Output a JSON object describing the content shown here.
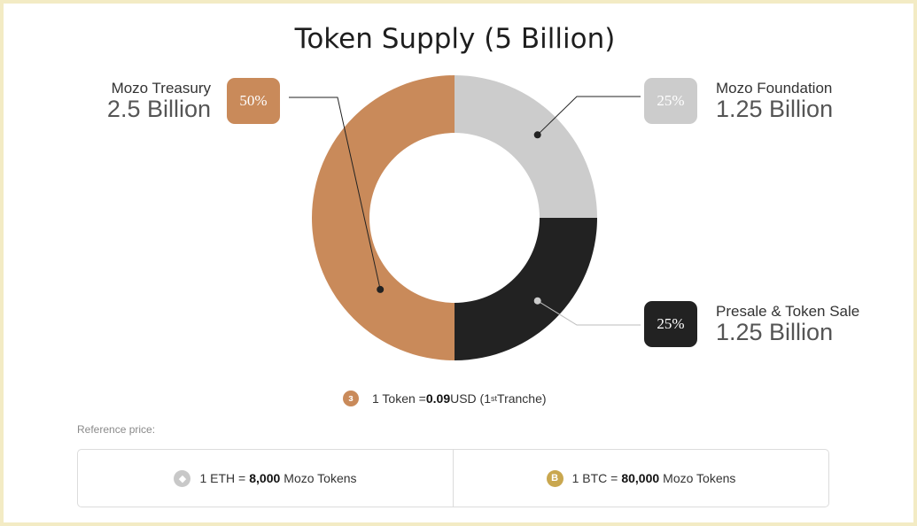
{
  "page_title": "Token Supply (5 Billion)",
  "chart_data": {
    "type": "pie",
    "title": "Token Supply (5 Billion)",
    "slices": [
      {
        "name": "Mozo Foundation",
        "percent": 25,
        "percent_label": "25%",
        "amount_label": "1.25 Billion",
        "color": "#cccccc"
      },
      {
        "name": "Presale & Token Sale",
        "percent": 25,
        "percent_label": "25%",
        "amount_label": "1.25 Billion",
        "color": "#222222"
      },
      {
        "name": "Mozo Treasury",
        "percent": 50,
        "percent_label": "50%",
        "amount_label": "2.5 Billion",
        "color": "#c98a5a"
      }
    ]
  },
  "token_price": {
    "icon": "mozo-coin-icon",
    "icon_glyph": "ɜ",
    "prefix": "1 Token = ",
    "value": "0.09",
    "unit": " USD (1",
    "sup": "st",
    "suffix": " Tranche)"
  },
  "reference": {
    "label": "Reference price:",
    "items": [
      {
        "icon": "eth-icon",
        "icon_glyph": "◆",
        "icon_color": "#c8c8c8",
        "prefix": "1 ETH =",
        "value": "8,000",
        "suffix": "Mozo Tokens"
      },
      {
        "icon": "btc-icon",
        "icon_glyph": "B",
        "icon_color": "#c9a74f",
        "prefix": "1 BTC =",
        "value": "80,000",
        "suffix": "Mozo Tokens"
      }
    ]
  }
}
